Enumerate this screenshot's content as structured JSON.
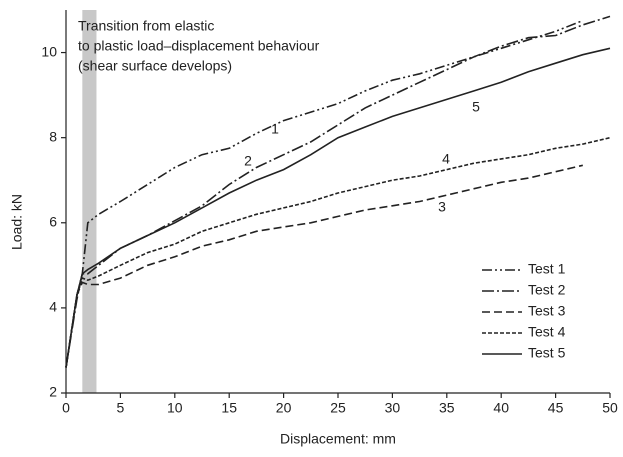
{
  "chart_data": {
    "type": "line",
    "xlabel": "Displacement: mm",
    "ylabel": "Load: kN",
    "annotation": [
      "Transition from elastic",
      "to plastic load–displacement behaviour",
      "(shear surface develops)"
    ],
    "highlight_x": [
      1.5,
      2.8
    ],
    "highlight_color": "#c8c8c8",
    "xlim": [
      0,
      50
    ],
    "ylim": [
      2,
      11
    ],
    "xticks": [
      0,
      5,
      10,
      15,
      20,
      25,
      30,
      35,
      40,
      45,
      50
    ],
    "yticks": [
      2,
      4,
      6,
      8,
      10
    ],
    "legend": "lower right",
    "x": [
      0,
      1,
      1.5,
      2,
      3,
      5,
      7.5,
      10,
      12.5,
      15,
      17.5,
      20,
      22.5,
      25,
      27.5,
      30,
      32.5,
      35,
      37.5,
      40,
      42.5,
      45,
      47.5,
      50
    ],
    "series": [
      {
        "name": "Test 1",
        "label": "1",
        "color": "#222222",
        "dash": "10 3 2 3 2 3",
        "values": [
          2.6,
          4.3,
          4.8,
          6.0,
          6.2,
          6.5,
          6.9,
          7.3,
          7.6,
          7.75,
          8.1,
          8.4,
          8.6,
          8.8,
          9.1,
          9.35,
          9.5,
          9.7,
          9.9,
          10.1,
          10.3,
          10.5,
          10.75,
          null
        ]
      },
      {
        "name": "Test 2",
        "label": "2",
        "color": "#222222",
        "dash": "12 3 2 3",
        "values": [
          2.6,
          4.2,
          4.8,
          4.8,
          5.0,
          5.4,
          5.7,
          6.05,
          6.4,
          6.9,
          7.3,
          7.6,
          7.9,
          8.3,
          8.7,
          9.0,
          9.3,
          9.6,
          9.9,
          10.15,
          10.35,
          10.4,
          10.65,
          10.85
        ]
      },
      {
        "name": "Test 3",
        "label": "3",
        "color": "#222222",
        "dash": "8 4",
        "values": [
          2.6,
          4.3,
          4.6,
          4.55,
          4.55,
          4.7,
          5.0,
          5.2,
          5.45,
          5.6,
          5.8,
          5.9,
          6.0,
          6.15,
          6.3,
          6.4,
          6.5,
          6.65,
          6.8,
          6.95,
          7.05,
          7.2,
          7.35,
          null
        ]
      },
      {
        "name": "Test 4",
        "label": "4",
        "color": "#222222",
        "dash": "4 2",
        "values": [
          2.6,
          4.3,
          4.7,
          4.65,
          4.75,
          5.0,
          5.3,
          5.5,
          5.8,
          6.0,
          6.2,
          6.35,
          6.5,
          6.7,
          6.85,
          7.0,
          7.1,
          7.25,
          7.4,
          7.5,
          7.6,
          7.75,
          7.85,
          8.0
        ]
      },
      {
        "name": "Test 5",
        "label": "5",
        "color": "#222222",
        "dash": "",
        "values": [
          2.6,
          4.3,
          4.8,
          4.9,
          5.05,
          5.4,
          5.7,
          6.0,
          6.35,
          6.7,
          7.0,
          7.25,
          7.6,
          8.0,
          8.25,
          8.5,
          8.7,
          8.9,
          9.1,
          9.3,
          9.55,
          9.75,
          9.95,
          10.1
        ]
      }
    ]
  }
}
